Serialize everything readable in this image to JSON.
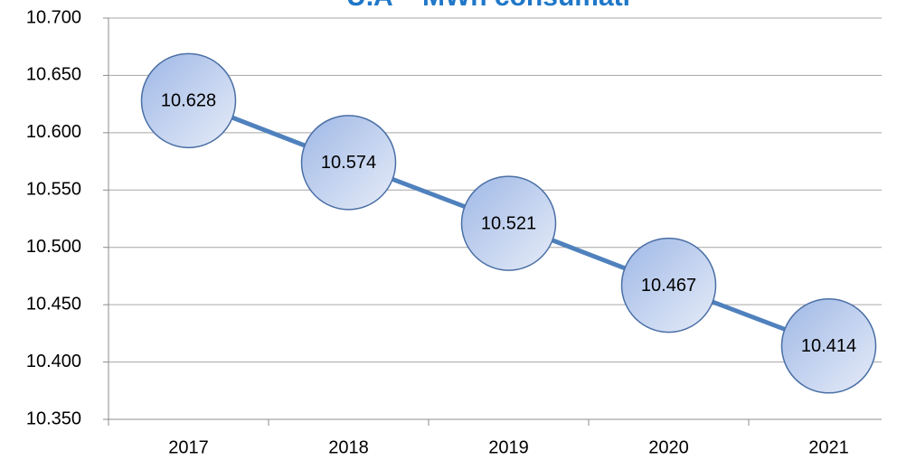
{
  "chart_data": {
    "type": "line",
    "title": "U.A – MWh consumati",
    "categories": [
      "2017",
      "2018",
      "2019",
      "2020",
      "2021"
    ],
    "series": [
      {
        "name": "MWh",
        "color": "#4f81bd",
        "values": [
          10628,
          10574,
          10521,
          10467,
          10414
        ],
        "value_labels": [
          "10.628",
          "10.574",
          "10.521",
          "10.467",
          "10.414"
        ]
      }
    ],
    "ylim": [
      10350,
      10700
    ],
    "yticks": [
      {
        "value": 10350,
        "label": "10.350"
      },
      {
        "value": 10400,
        "label": "10.400"
      },
      {
        "value": 10450,
        "label": "10.450"
      },
      {
        "value": 10500,
        "label": "10.500"
      },
      {
        "value": 10550,
        "label": "10.550"
      },
      {
        "value": 10600,
        "label": "10.600"
      },
      {
        "value": 10650,
        "label": "10.650"
      },
      {
        "value": 10700,
        "label": "10.700"
      }
    ],
    "grid": true
  }
}
